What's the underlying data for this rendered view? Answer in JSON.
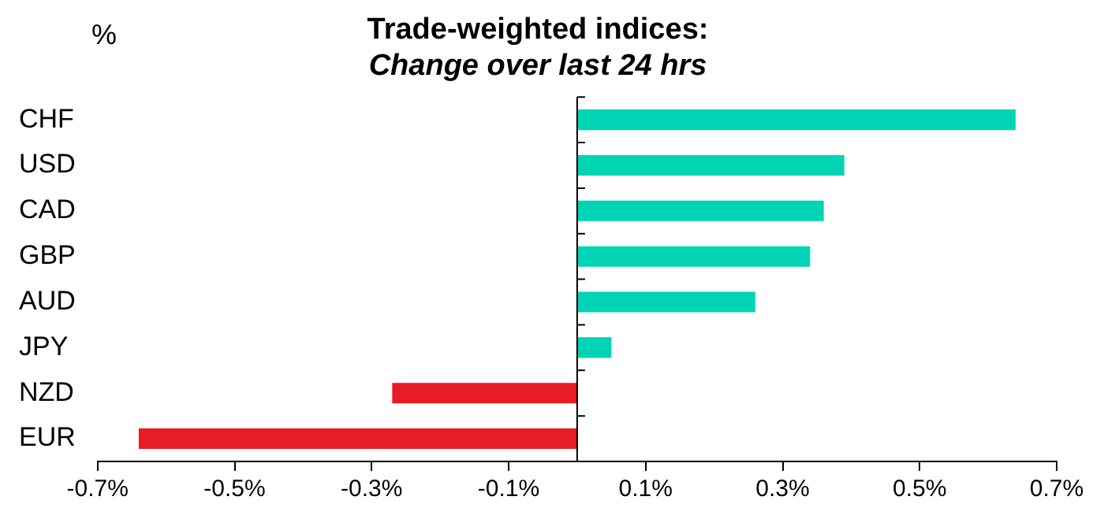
{
  "chart_data": {
    "type": "bar",
    "orientation": "horizontal",
    "title": "Trade-weighted indices:",
    "subtitle": "Change over last 24 hrs",
    "ylabel": "%",
    "categories": [
      "CHF",
      "USD",
      "CAD",
      "GBP",
      "AUD",
      "JPY",
      "NZD",
      "EUR"
    ],
    "values": [
      0.64,
      0.39,
      0.36,
      0.34,
      0.26,
      0.05,
      -0.27,
      -0.64
    ],
    "colors": [
      "#00d4b4",
      "#00d4b4",
      "#00d4b4",
      "#00d4b4",
      "#00d4b4",
      "#00d4b4",
      "#e81c24",
      "#e81c24"
    ],
    "xlim": [
      -0.7,
      0.7
    ],
    "xticks": [
      {
        "value": -0.7,
        "label": "-0.7%"
      },
      {
        "value": -0.5,
        "label": "-0.5%"
      },
      {
        "value": -0.3,
        "label": "-0.3%"
      },
      {
        "value": -0.1,
        "label": "-0.1%"
      },
      {
        "value": 0.1,
        "label": "0.1%"
      },
      {
        "value": 0.3,
        "label": "0.3%"
      },
      {
        "value": 0.5,
        "label": "0.5%"
      },
      {
        "value": 0.7,
        "label": "0.7%"
      }
    ],
    "grid": false,
    "legend": false
  }
}
